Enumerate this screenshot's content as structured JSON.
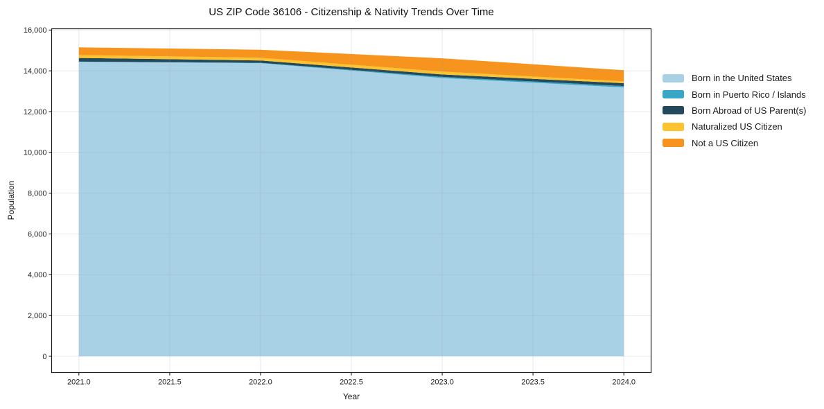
{
  "chart_data": {
    "type": "area",
    "stacked": true,
    "title": "US ZIP Code 36106 - Citizenship & Nativity Trends Over Time",
    "xlabel": "Year",
    "ylabel": "Population",
    "x": [
      2021,
      2022,
      2023,
      2024
    ],
    "series": [
      {
        "name": "Born in the United States",
        "color": "#a8d1e6",
        "values": [
          14445,
          14380,
          13650,
          13190
        ]
      },
      {
        "name": "Born in Puerto Rico / Islands",
        "color": "#3aa6c6",
        "values": [
          10,
          15,
          55,
          65
        ]
      },
      {
        "name": "Born Abroad of US Parent(s)",
        "color": "#23495c",
        "values": [
          180,
          115,
          120,
          140
        ]
      },
      {
        "name": "Naturalized US Citizen",
        "color": "#fcc32f",
        "values": [
          140,
          135,
          140,
          90
        ]
      },
      {
        "name": "Not a US Citizen",
        "color": "#f6941e",
        "values": [
          380,
          390,
          650,
          545
        ]
      }
    ],
    "totals": [
      15155,
      15035,
      14615,
      14030
    ],
    "xticks": [
      2021.0,
      2021.5,
      2022.0,
      2022.5,
      2023.0,
      2023.5,
      2024.0
    ],
    "yticks": [
      0,
      2000,
      4000,
      6000,
      8000,
      10000,
      12000,
      14000,
      16000
    ],
    "xlim": [
      2020.85,
      2024.15
    ],
    "ylim": [
      -800,
      16065
    ],
    "grid": true,
    "legend_position": "right",
    "colors": {
      "grid": "#999999",
      "spine": "#1a1a1a",
      "tick_label": "#1f1f1f",
      "background": "#ffffff"
    }
  }
}
